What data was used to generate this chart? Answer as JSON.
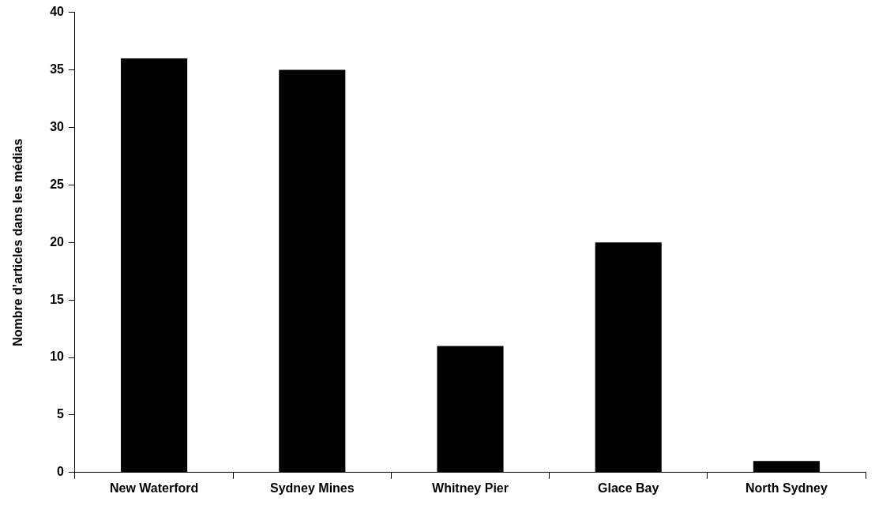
{
  "chart_data": {
    "type": "bar",
    "ylabel": "Nombre d’articles dans les médias",
    "categories": [
      "New Waterford",
      "Sydney Mines",
      "Whitney Pier",
      "Glace Bay",
      "North Sydney"
    ],
    "values": [
      36,
      35,
      11,
      20,
      1
    ],
    "color": "#000000",
    "ylim": [
      0,
      40
    ],
    "yticks": [
      0,
      5,
      10,
      15,
      20,
      25,
      30,
      35,
      40
    ],
    "grid": false,
    "legend": false
  }
}
